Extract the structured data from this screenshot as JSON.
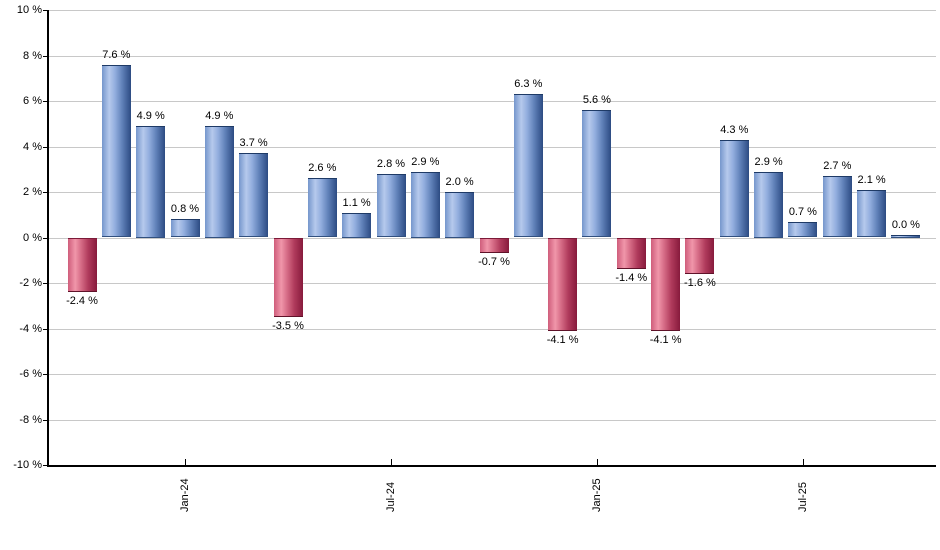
{
  "chart_data": {
    "type": "bar",
    "title": "",
    "values": [
      -2.4,
      7.6,
      4.9,
      0.8,
      4.9,
      3.7,
      -3.5,
      2.6,
      1.1,
      2.8,
      2.9,
      2.0,
      -0.7,
      6.3,
      -4.1,
      5.6,
      -1.4,
      -4.1,
      -1.6,
      4.3,
      2.9,
      0.7,
      2.7,
      2.1,
      0.0
    ],
    "value_labels": [
      "-2.4 %",
      "7.6 %",
      "4.9 %",
      "0.8 %",
      "4.9 %",
      "3.7 %",
      "-3.5 %",
      "2.6 %",
      "1.1 %",
      "2.8 %",
      "2.9 %",
      "2.0 %",
      "-0.7 %",
      "6.3 %",
      "-4.1 %",
      "5.6 %",
      "-1.4 %",
      "-4.1 %",
      "-1.6 %",
      "4.3 %",
      "2.9 %",
      "0.7 %",
      "2.7 %",
      "2.1 %",
      "0.0 %"
    ],
    "x_tick_labels": [
      {
        "bar_index": 3,
        "label": "Jan-24"
      },
      {
        "bar_index": 9,
        "label": "Jul-24"
      },
      {
        "bar_index": 15,
        "label": "Jan-25"
      },
      {
        "bar_index": 21,
        "label": "Jul-25"
      }
    ],
    "y_tick_labels": [
      "10 %",
      "8 %",
      "6 %",
      "4 %",
      "2 %",
      "0 %",
      "-2 %",
      "-4 %",
      "-6 %",
      "-8 %",
      "-10 %"
    ],
    "ylim": [
      -10,
      10
    ],
    "y_step": 2,
    "grid": true,
    "legend": "none",
    "colors": {
      "positive_light": "#b6c9ec",
      "positive_mid": "#7596cc",
      "positive_dark": "#2c4b82",
      "negative_light": "#f096aa",
      "negative_mid": "#cf5d7b",
      "negative_dark": "#871a3c",
      "gridline": "#c8c8c8",
      "axis": "#000000",
      "label_text": "#000000"
    }
  }
}
